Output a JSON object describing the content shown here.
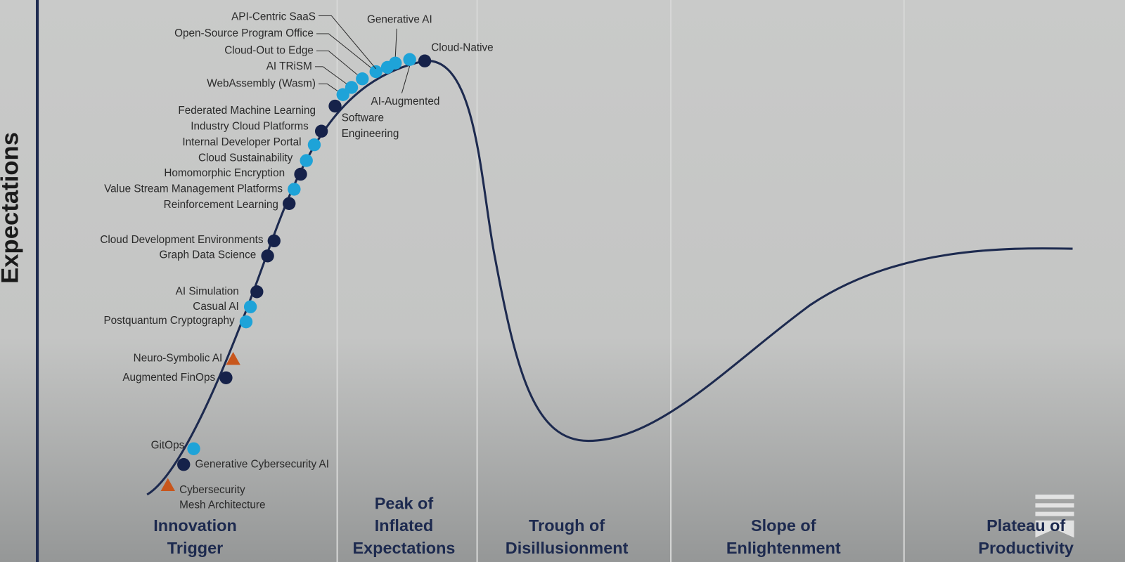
{
  "y_axis_label": "Expectations",
  "phases": [
    [
      "Innovation",
      "Trigger"
    ],
    [
      "Peak of",
      "Inflated",
      "Expectations"
    ],
    [
      "Trough of",
      "Disillusionment"
    ],
    [
      "Slope of",
      "Enlightenment"
    ],
    [
      "Plateau of",
      "Productivity"
    ]
  ],
  "technologies": [
    {
      "label": [
        "Cybersecurity",
        "Mesh Architecture"
      ],
      "marker": "triangle"
    },
    {
      "label": "Generative Cybersecurity AI",
      "marker": "dark"
    },
    {
      "label": "GitOps",
      "marker": "light"
    },
    {
      "label": "Augmented FinOps",
      "marker": "dark"
    },
    {
      "label": "Neuro-Symbolic AI",
      "marker": "triangle"
    },
    {
      "label": "Postquantum Cryptography",
      "marker": "light"
    },
    {
      "label": "Casual AI",
      "marker": "light"
    },
    {
      "label": "AI Simulation",
      "marker": "dark"
    },
    {
      "label": "Graph Data Science",
      "marker": "dark"
    },
    {
      "label": "Cloud Development Environments",
      "marker": "dark"
    },
    {
      "label": "Reinforcement Learning",
      "marker": "dark"
    },
    {
      "label": "Value Stream Management Platforms",
      "marker": "light"
    },
    {
      "label": "Homomorphic Encryption",
      "marker": "dark"
    },
    {
      "label": "Cloud Sustainability",
      "marker": "light"
    },
    {
      "label": "Internal Developer Portal",
      "marker": "light"
    },
    {
      "label": "Industry Cloud Platforms",
      "marker": "dark"
    },
    {
      "label": "Federated Machine Learning",
      "marker": "dark"
    },
    {
      "label": "WebAssembly (Wasm)",
      "marker": "light"
    },
    {
      "label": "AI TRiSM",
      "marker": "light"
    },
    {
      "label": "Cloud-Out to Edge",
      "marker": "light"
    },
    {
      "label": "Open-Source Program Office",
      "marker": "light"
    },
    {
      "label": "API-Centric SaaS",
      "marker": "light"
    },
    {
      "label": "Generative AI",
      "marker": "light"
    },
    {
      "label": [
        "AI-Augmented",
        "Software",
        "Engineering"
      ],
      "marker": "light"
    },
    {
      "label": "Cloud-Native",
      "marker": "dark"
    }
  ]
}
